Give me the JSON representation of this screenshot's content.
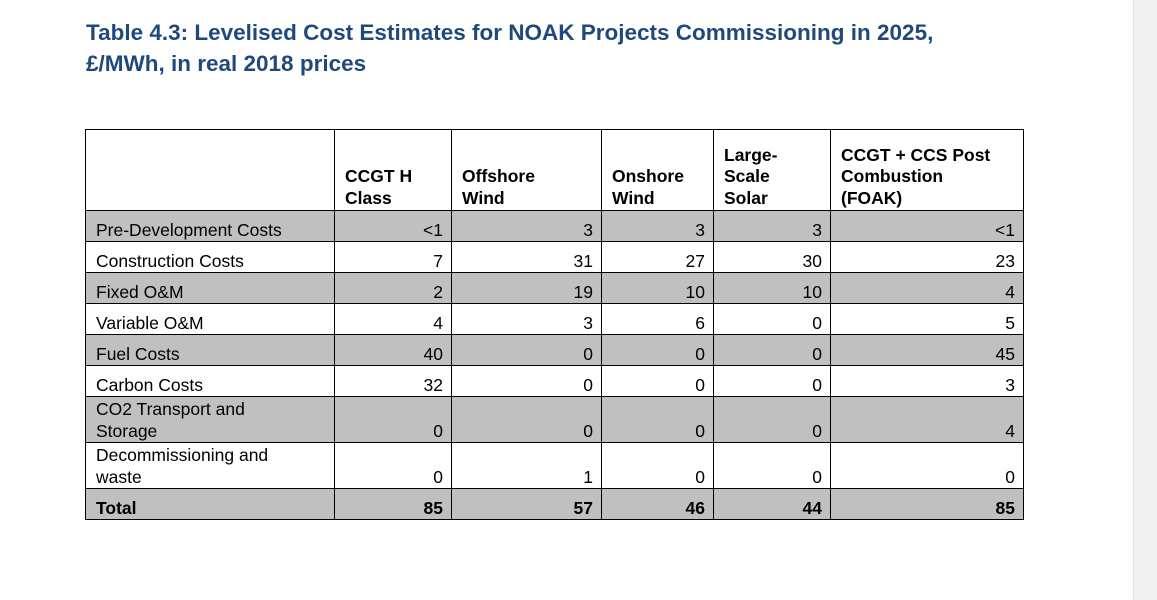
{
  "title": {
    "line1": "Table 4.3: Levelised Cost Estimates for NOAK Projects Commissioning in 2025,",
    "line2": "£/MWh, in real 2018 prices"
  },
  "headers": [
    [
      "CCGT H",
      "Class"
    ],
    [
      "Offshore",
      "Wind"
    ],
    [
      "Onshore",
      "Wind"
    ],
    [
      "Large-",
      "Scale",
      "Solar"
    ],
    [
      "CCGT + CCS Post",
      "Combustion",
      "(FOAK)"
    ]
  ],
  "rows": [
    {
      "label": "Pre-Development Costs",
      "values": [
        "<1",
        "3",
        "3",
        "3",
        "<1"
      ]
    },
    {
      "label": "Construction Costs",
      "values": [
        "7",
        "31",
        "27",
        "30",
        "23"
      ]
    },
    {
      "label": "Fixed O&M",
      "values": [
        "2",
        "19",
        "10",
        "10",
        "4"
      ]
    },
    {
      "label": "Variable O&M",
      "values": [
        "4",
        "3",
        "6",
        "0",
        "5"
      ]
    },
    {
      "label": "Fuel Costs",
      "values": [
        "40",
        "0",
        "0",
        "0",
        "45"
      ]
    },
    {
      "label": "Carbon Costs",
      "values": [
        "32",
        "0",
        "0",
        "0",
        "3"
      ]
    },
    {
      "label_lines": [
        "CO2 Transport and",
        "Storage"
      ],
      "values": [
        "0",
        "0",
        "0",
        "0",
        "4"
      ]
    },
    {
      "label_lines": [
        "Decommissioning and",
        "waste"
      ],
      "values": [
        "0",
        "1",
        "0",
        "0",
        "0"
      ]
    }
  ],
  "total": {
    "label": "Total",
    "values": [
      "85",
      "57",
      "46",
      "44",
      "85"
    ]
  },
  "colors": {
    "title": "#1f497d",
    "shaded_row": "#c0c0c0"
  }
}
